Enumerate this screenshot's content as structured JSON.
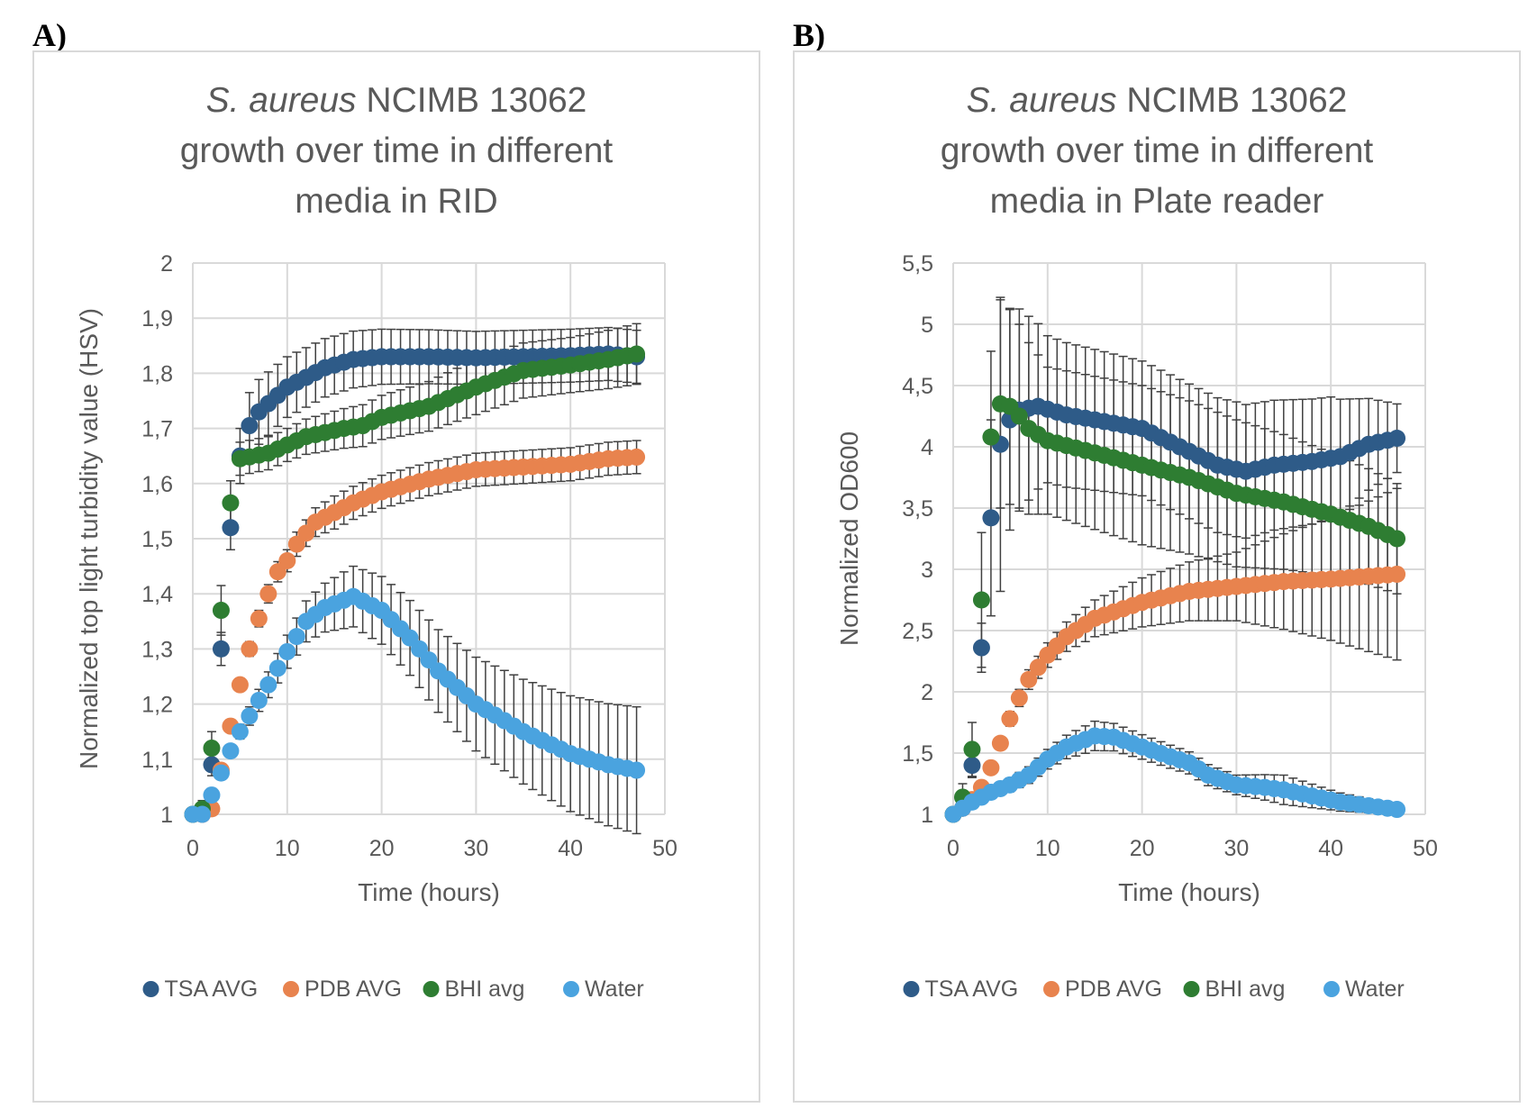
{
  "panels": [
    {
      "letter": "A)"
    },
    {
      "letter": "B)"
    }
  ],
  "chart_data": [
    {
      "type": "scatter",
      "title_italic": "S. aureus",
      "title_rest": " NCIMB 13062",
      "title_line2": "growth over time in different",
      "title_line3": "media in RID",
      "xlabel": "Time (hours)",
      "ylabel": "Normalized top light turbidity value (HSV)",
      "xlim": [
        0,
        50
      ],
      "ylim": [
        1,
        2
      ],
      "xticks": [
        "0",
        "10",
        "20",
        "30",
        "40",
        "50"
      ],
      "yticks": [
        "1",
        "1,1",
        "1,2",
        "1,3",
        "1,4",
        "1,5",
        "1,6",
        "1,7",
        "1,8",
        "1,9",
        "2"
      ],
      "grid": true,
      "legend_position": "bottom",
      "series": [
        {
          "name": "TSA AVG",
          "color": "#2e5b88",
          "anchors": [
            [
              0,
              1.0
            ],
            [
              1,
              1.0
            ],
            [
              2,
              1.09
            ],
            [
              3,
              1.3
            ],
            [
              4,
              1.52
            ],
            [
              5,
              1.65
            ],
            [
              6,
              1.705
            ],
            [
              7,
              1.73
            ],
            [
              10,
              1.775
            ],
            [
              14,
              1.81
            ],
            [
              17,
              1.825
            ],
            [
              20,
              1.83
            ],
            [
              25,
              1.83
            ],
            [
              30,
              1.828
            ],
            [
              35,
              1.83
            ],
            [
              40,
              1.832
            ],
            [
              44,
              1.835
            ],
            [
              47,
              1.83
            ]
          ],
          "err": [
            [
              0,
              0
            ],
            [
              2,
              0.02
            ],
            [
              4,
              0.04
            ],
            [
              6,
              0.06
            ],
            [
              10,
              0.055
            ],
            [
              20,
              0.05
            ],
            [
              30,
              0.048
            ],
            [
              47,
              0.048
            ]
          ]
        },
        {
          "name": "PDB AVG",
          "color": "#e8834e",
          "anchors": [
            [
              0,
              1.0
            ],
            [
              1,
              1.0
            ],
            [
              2,
              1.01
            ],
            [
              3,
              1.08
            ],
            [
              4,
              1.16
            ],
            [
              5,
              1.235
            ],
            [
              6,
              1.3
            ],
            [
              7,
              1.355
            ],
            [
              8,
              1.4
            ],
            [
              9,
              1.44
            ],
            [
              10,
              1.46
            ],
            [
              11,
              1.49
            ],
            [
              13,
              1.53
            ],
            [
              17,
              1.565
            ],
            [
              20,
              1.585
            ],
            [
              25,
              1.608
            ],
            [
              30,
              1.625
            ],
            [
              35,
              1.63
            ],
            [
              40,
              1.635
            ],
            [
              44,
              1.645
            ],
            [
              47,
              1.648
            ]
          ],
          "err": [
            [
              0,
              0
            ],
            [
              4,
              0.01
            ],
            [
              10,
              0.02
            ],
            [
              15,
              0.03
            ],
            [
              20,
              0.03
            ],
            [
              47,
              0.03
            ]
          ]
        },
        {
          "name": "BHI avg",
          "color": "#2e7d32",
          "anchors": [
            [
              0,
              1.0
            ],
            [
              1,
              1.01
            ],
            [
              2,
              1.12
            ],
            [
              3,
              1.37
            ],
            [
              4,
              1.565
            ],
            [
              5,
              1.645
            ],
            [
              8,
              1.655
            ],
            [
              12,
              1.685
            ],
            [
              16,
              1.7
            ],
            [
              18,
              1.705
            ],
            [
              20,
              1.72
            ],
            [
              25,
              1.74
            ],
            [
              30,
              1.775
            ],
            [
              35,
              1.805
            ],
            [
              40,
              1.815
            ],
            [
              44,
              1.825
            ],
            [
              47,
              1.835
            ]
          ],
          "err": [
            [
              0,
              0
            ],
            [
              2,
              0.03
            ],
            [
              3,
              0.045
            ],
            [
              4,
              0.04
            ],
            [
              5,
              0.03
            ],
            [
              10,
              0.03
            ],
            [
              20,
              0.04
            ],
            [
              30,
              0.05
            ],
            [
              40,
              0.05
            ],
            [
              47,
              0.055
            ]
          ]
        },
        {
          "name": "Water",
          "color": "#4aa3df",
          "anchors": [
            [
              0,
              1.0
            ],
            [
              1,
              1.0
            ],
            [
              2,
              1.035
            ],
            [
              3,
              1.075
            ],
            [
              4,
              1.115
            ],
            [
              5,
              1.15
            ],
            [
              8,
              1.235
            ],
            [
              10,
              1.295
            ],
            [
              12,
              1.35
            ],
            [
              14,
              1.375
            ],
            [
              17,
              1.395
            ],
            [
              20,
              1.37
            ],
            [
              23,
              1.32
            ],
            [
              26,
              1.26
            ],
            [
              30,
              1.2
            ],
            [
              35,
              1.15
            ],
            [
              40,
              1.11
            ],
            [
              44,
              1.09
            ],
            [
              47,
              1.08
            ]
          ],
          "err": [
            [
              0,
              0
            ],
            [
              4,
              0.01
            ],
            [
              10,
              0.03
            ],
            [
              17,
              0.055
            ],
            [
              24,
              0.07
            ],
            [
              30,
              0.085
            ],
            [
              40,
              0.105
            ],
            [
              47,
              0.115
            ]
          ]
        }
      ]
    },
    {
      "type": "scatter",
      "title_italic": "S. aureus",
      "title_rest": " NCIMB 13062",
      "title_line2": "growth over time in different",
      "title_line3": "media in Plate reader",
      "xlabel": "Time (hours)",
      "ylabel": "Normalized OD600",
      "xlim": [
        0,
        50
      ],
      "ylim": [
        1,
        5.5
      ],
      "xticks": [
        "0",
        "10",
        "20",
        "30",
        "40",
        "50"
      ],
      "yticks": [
        "1",
        "1,5",
        "2",
        "2,5",
        "3",
        "3,5",
        "4",
        "4,5",
        "5",
        "5,5"
      ],
      "grid": true,
      "legend_position": "bottom",
      "series": [
        {
          "name": "TSA AVG",
          "color": "#2e5b88",
          "anchors": [
            [
              0,
              1.0
            ],
            [
              1,
              1.05
            ],
            [
              2,
              1.4
            ],
            [
              3,
              2.36
            ],
            [
              4,
              3.42
            ],
            [
              5,
              4.02
            ],
            [
              6,
              4.22
            ],
            [
              7,
              4.3
            ],
            [
              9,
              4.33
            ],
            [
              12,
              4.26
            ],
            [
              15,
              4.22
            ],
            [
              20,
              4.15
            ],
            [
              24,
              4.0
            ],
            [
              28,
              3.85
            ],
            [
              31,
              3.8
            ],
            [
              34,
              3.85
            ],
            [
              38,
              3.88
            ],
            [
              41,
              3.92
            ],
            [
              44,
              4.02
            ],
            [
              47,
              4.07
            ]
          ],
          "err": [
            [
              0,
              0
            ],
            [
              2,
              0.1
            ],
            [
              3,
              0.2
            ],
            [
              4,
              0.8
            ],
            [
              5,
              1.2
            ],
            [
              6,
              0.9
            ],
            [
              10,
              0.6
            ],
            [
              20,
              0.55
            ],
            [
              30,
              0.55
            ],
            [
              40,
              0.5
            ],
            [
              47,
              0.28
            ]
          ]
        },
        {
          "name": "PDB AVG",
          "color": "#e8834e",
          "anchors": [
            [
              0,
              1.0
            ],
            [
              1,
              1.05
            ],
            [
              2,
              1.12
            ],
            [
              3,
              1.22
            ],
            [
              4,
              1.38
            ],
            [
              5,
              1.58
            ],
            [
              6,
              1.78
            ],
            [
              7,
              1.95
            ],
            [
              8,
              2.1
            ],
            [
              9,
              2.2
            ],
            [
              10,
              2.3
            ],
            [
              12,
              2.45
            ],
            [
              15,
              2.6
            ],
            [
              20,
              2.73
            ],
            [
              25,
              2.82
            ],
            [
              30,
              2.86
            ],
            [
              35,
              2.9
            ],
            [
              40,
              2.92
            ],
            [
              47,
              2.96
            ]
          ],
          "err": [
            [
              0,
              0
            ],
            [
              5,
              0.05
            ],
            [
              10,
              0.1
            ],
            [
              20,
              0.2
            ],
            [
              30,
              0.28
            ],
            [
              40,
              0.5
            ],
            [
              47,
              0.7
            ]
          ]
        },
        {
          "name": "BHI avg",
          "color": "#2e7d32",
          "anchors": [
            [
              0,
              1.0
            ],
            [
              1,
              1.14
            ],
            [
              2,
              1.53
            ],
            [
              3,
              2.75
            ],
            [
              4,
              4.08
            ],
            [
              5,
              4.35
            ],
            [
              6,
              4.33
            ],
            [
              7,
              4.25
            ],
            [
              8,
              4.15
            ],
            [
              10,
              4.05
            ],
            [
              15,
              3.95
            ],
            [
              20,
              3.85
            ],
            [
              25,
              3.75
            ],
            [
              30,
              3.62
            ],
            [
              35,
              3.55
            ],
            [
              40,
              3.45
            ],
            [
              44,
              3.35
            ],
            [
              47,
              3.25
            ]
          ],
          "err": [
            [
              0,
              0
            ],
            [
              2,
              0.22
            ],
            [
              3,
              0.55
            ],
            [
              4,
              0.7
            ],
            [
              5,
              0.85
            ],
            [
              7,
              0.75
            ],
            [
              10,
              0.6
            ],
            [
              20,
              0.65
            ],
            [
              30,
              0.6
            ],
            [
              40,
              0.5
            ],
            [
              47,
              0.45
            ]
          ]
        },
        {
          "name": "Water",
          "color": "#4aa3df",
          "anchors": [
            [
              0,
              1.0
            ],
            [
              1,
              1.05
            ],
            [
              2,
              1.1
            ],
            [
              4,
              1.18
            ],
            [
              6,
              1.24
            ],
            [
              8,
              1.32
            ],
            [
              10,
              1.45
            ],
            [
              12,
              1.55
            ],
            [
              15,
              1.64
            ],
            [
              17,
              1.63
            ],
            [
              20,
              1.55
            ],
            [
              23,
              1.47
            ],
            [
              25,
              1.42
            ],
            [
              27,
              1.32
            ],
            [
              30,
              1.24
            ],
            [
              33,
              1.22
            ],
            [
              35,
              1.2
            ],
            [
              38,
              1.15
            ],
            [
              41,
              1.1
            ],
            [
              44,
              1.07
            ],
            [
              47,
              1.04
            ]
          ],
          "err": [
            [
              0,
              0
            ],
            [
              5,
              0.05
            ],
            [
              10,
              0.08
            ],
            [
              15,
              0.12
            ],
            [
              20,
              0.1
            ],
            [
              30,
              0.08
            ],
            [
              35,
              0.12
            ],
            [
              40,
              0.08
            ],
            [
              47,
              0.04
            ]
          ]
        }
      ]
    }
  ]
}
